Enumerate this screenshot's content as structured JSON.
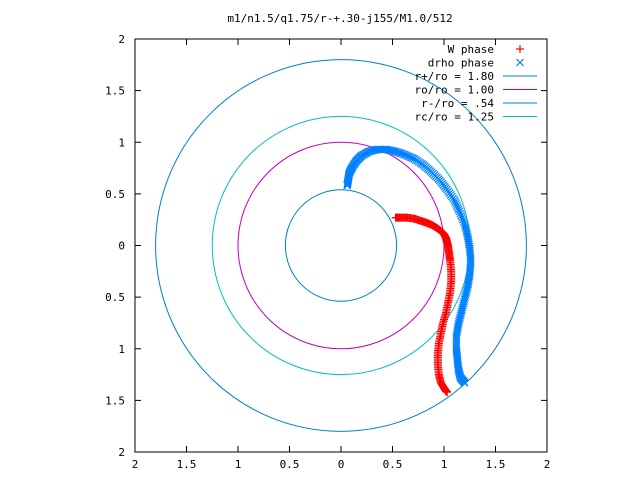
{
  "chart_data": {
    "type": "scatter",
    "title": "m1/n1.5/q1.75/r-+.30-j155/M1.0/512",
    "xlim": [
      2,
      -2
    ],
    "ylim": [
      -2,
      2
    ],
    "xticks": [
      2,
      1.5,
      1,
      0.5,
      0,
      0.5,
      1,
      1.5,
      2
    ],
    "xtick_labels": [
      "2",
      "1.5",
      "1",
      "0.5",
      "0",
      "0.5",
      "1",
      "1.5",
      "2"
    ],
    "yticks": [
      2,
      1.5,
      1,
      0.5,
      0,
      -0.5,
      -1,
      -1.5,
      -2
    ],
    "ytick_labels": [
      "2",
      "1.5",
      "1",
      "0.5",
      "0",
      "0.5",
      "1",
      "1.5",
      "2"
    ],
    "grid": false,
    "legend_position": "top-right",
    "legend": [
      {
        "label": "W phase",
        "marker": "+",
        "color": "#ff0000"
      },
      {
        "label": "drho phase",
        "marker": "x",
        "color": "#0080ff"
      },
      {
        "label": "r+/ro = 1.80",
        "marker": "line",
        "color": "#0080c0"
      },
      {
        "label": "ro/ro = 1.00",
        "marker": "line",
        "color": "#c000c0"
      },
      {
        "label": "r-/ro = .54",
        "marker": "line",
        "color": "#0080c0"
      },
      {
        "label": "rc/ro = 1.25",
        "marker": "line",
        "color": "#00c0c0"
      }
    ],
    "circles": [
      {
        "name": "r+/ro = 1.80",
        "radius": 1.8,
        "color": "#0080c0"
      },
      {
        "name": "ro/ro = 1.00",
        "radius": 1.0,
        "color": "#c000c0"
      },
      {
        "name": "r-/ro = .54",
        "radius": 0.54,
        "color": "#0080c0"
      },
      {
        "name": "rc/ro = 1.25",
        "radius": 1.25,
        "color": "#00c0c0"
      }
    ],
    "series": [
      {
        "name": "W phase",
        "marker": "+",
        "color": "#ff0000",
        "x": [
          -1.03,
          -1.02,
          -1.0,
          -0.97,
          -0.95,
          -0.94,
          -0.94,
          -0.95,
          -0.97,
          -0.99,
          -1.02,
          -1.04,
          -1.06,
          -1.07,
          -1.07,
          -1.06,
          -1.05,
          -1.04,
          -1.03,
          -1.02,
          -1.0,
          -0.97,
          -0.93,
          -0.88,
          -0.83,
          -0.77,
          -0.71,
          -0.64,
          -0.58,
          -0.53
        ],
        "y": [
          -1.42,
          -1.41,
          -1.38,
          -1.33,
          -1.25,
          -1.15,
          -1.05,
          -0.95,
          -0.85,
          -0.75,
          -0.65,
          -0.55,
          -0.45,
          -0.35,
          -0.25,
          -0.15,
          -0.08,
          -0.01,
          0.03,
          0.07,
          0.11,
          0.14,
          0.17,
          0.2,
          0.22,
          0.24,
          0.26,
          0.27,
          0.27,
          0.27
        ]
      },
      {
        "name": "drho phase",
        "marker": "x",
        "color": "#0080ff",
        "x": [
          -1.2,
          -1.16,
          -1.14,
          -1.13,
          -1.12,
          -1.12,
          -1.14,
          -1.17,
          -1.2,
          -1.23,
          -1.25,
          -1.26,
          -1.25,
          -1.23,
          -1.2,
          -1.15,
          -1.1,
          -1.03,
          -0.96,
          -0.88,
          -0.8,
          -0.71,
          -0.62,
          -0.53,
          -0.44,
          -0.35,
          -0.27,
          -0.2,
          -0.15,
          -0.11,
          -0.08,
          -0.07,
          -0.06
        ],
        "y": [
          -1.33,
          -1.28,
          -1.2,
          -1.1,
          -1.0,
          -0.88,
          -0.76,
          -0.64,
          -0.52,
          -0.4,
          -0.28,
          -0.15,
          -0.03,
          0.09,
          0.21,
          0.33,
          0.44,
          0.54,
          0.63,
          0.71,
          0.78,
          0.84,
          0.88,
          0.91,
          0.93,
          0.93,
          0.91,
          0.87,
          0.82,
          0.76,
          0.7,
          0.64,
          0.58
        ]
      }
    ]
  }
}
